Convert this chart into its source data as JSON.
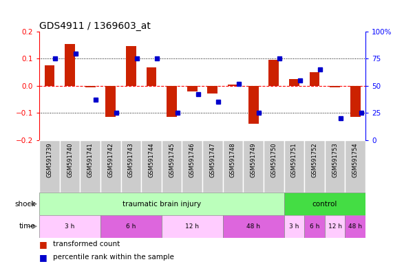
{
  "title": "GDS4911 / 1369603_at",
  "samples": [
    "GSM591739",
    "GSM591740",
    "GSM591741",
    "GSM591742",
    "GSM591743",
    "GSM591744",
    "GSM591745",
    "GSM591746",
    "GSM591747",
    "GSM591748",
    "GSM591749",
    "GSM591750",
    "GSM591751",
    "GSM591752",
    "GSM591753",
    "GSM591754"
  ],
  "red_values": [
    0.075,
    0.155,
    -0.005,
    -0.115,
    0.148,
    0.068,
    -0.115,
    -0.02,
    -0.028,
    0.005,
    -0.14,
    0.097,
    0.025,
    0.05,
    -0.005,
    -0.115
  ],
  "blue_values": [
    75,
    80,
    37,
    25,
    75,
    75,
    25,
    42,
    35,
    52,
    25,
    75,
    55,
    65,
    20,
    25
  ],
  "ylim": [
    -0.2,
    0.2
  ],
  "yticks_left": [
    -0.2,
    -0.1,
    0.0,
    0.1,
    0.2
  ],
  "yticks_right": [
    0,
    25,
    50,
    75,
    100
  ],
  "shock_groups": [
    {
      "label": "traumatic brain injury",
      "start": 0,
      "end": 12,
      "color": "#bbffbb"
    },
    {
      "label": "control",
      "start": 12,
      "end": 16,
      "color": "#44dd44"
    }
  ],
  "time_groups": [
    {
      "label": "3 h",
      "start": 0,
      "end": 3,
      "color": "#ffccff"
    },
    {
      "label": "6 h",
      "start": 3,
      "end": 6,
      "color": "#dd66dd"
    },
    {
      "label": "12 h",
      "start": 6,
      "end": 9,
      "color": "#ffccff"
    },
    {
      "label": "48 h",
      "start": 9,
      "end": 12,
      "color": "#dd66dd"
    },
    {
      "label": "3 h",
      "start": 12,
      "end": 13,
      "color": "#ffccff"
    },
    {
      "label": "6 h",
      "start": 13,
      "end": 14,
      "color": "#dd66dd"
    },
    {
      "label": "12 h",
      "start": 14,
      "end": 15,
      "color": "#ffccff"
    },
    {
      "label": "48 h",
      "start": 15,
      "end": 16,
      "color": "#dd66dd"
    }
  ],
  "red_color": "#cc2200",
  "blue_color": "#0000cc",
  "bar_width": 0.5,
  "legend_items": [
    "transformed count",
    "percentile rank within the sample"
  ],
  "background_color": "#ffffff",
  "label_bg": "#cccccc"
}
